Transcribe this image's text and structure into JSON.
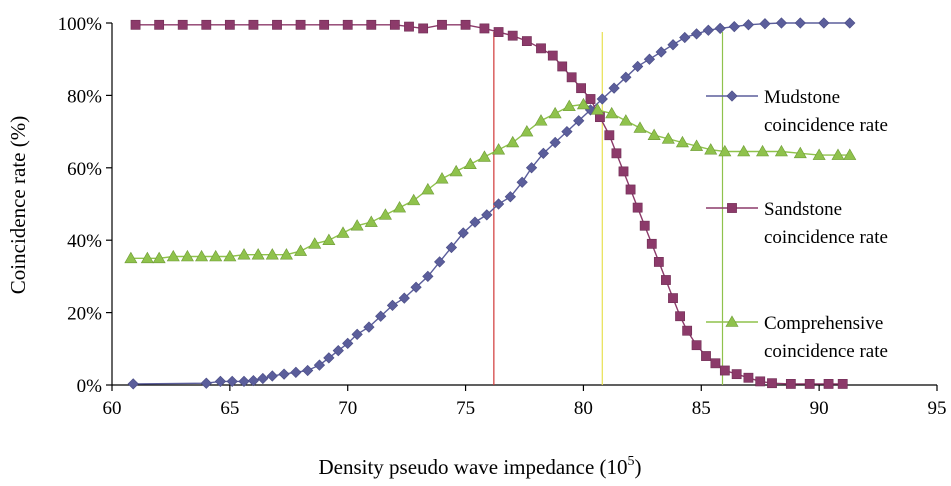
{
  "chart_data": {
    "type": "line",
    "xlabel": "Density pseudo wave impedance (10",
    "xlabel_sup": "5",
    "xlabel_end": ")",
    "ylabel": "Coincidence rate (%)",
    "xlim": [
      60,
      95
    ],
    "ylim": [
      0,
      100
    ],
    "x_ticks": [
      "60",
      "65",
      "70",
      "75",
      "80",
      "85",
      "90",
      "95"
    ],
    "y_ticks": [
      "0%",
      "20%",
      "40%",
      "60%",
      "80%",
      "100%"
    ],
    "grid": false,
    "legend_placement": "right",
    "series": [
      {
        "name": "Mudstone coincidence rate",
        "legend_lines": [
          "Mudstone",
          "coincidence rate"
        ],
        "color": "#5b5e9b",
        "marker": "diamond",
        "points": [
          [
            60.9,
            0.3
          ],
          [
            64.0,
            0.5
          ],
          [
            64.6,
            1
          ],
          [
            65.1,
            1
          ],
          [
            65.6,
            1
          ],
          [
            66.0,
            1.2
          ],
          [
            66.4,
            1.8
          ],
          [
            66.8,
            2.5
          ],
          [
            67.3,
            3
          ],
          [
            67.8,
            3.5
          ],
          [
            68.3,
            4
          ],
          [
            68.8,
            5.5
          ],
          [
            69.2,
            7.5
          ],
          [
            69.6,
            9.5
          ],
          [
            70.0,
            11.5
          ],
          [
            70.4,
            14
          ],
          [
            70.9,
            16
          ],
          [
            71.4,
            19
          ],
          [
            71.9,
            22
          ],
          [
            72.4,
            24
          ],
          [
            72.9,
            27
          ],
          [
            73.4,
            30
          ],
          [
            73.9,
            34
          ],
          [
            74.4,
            38
          ],
          [
            74.9,
            42
          ],
          [
            75.4,
            45
          ],
          [
            75.9,
            47
          ],
          [
            76.4,
            50
          ],
          [
            76.9,
            52
          ],
          [
            77.4,
            56
          ],
          [
            77.8,
            60
          ],
          [
            78.3,
            64
          ],
          [
            78.8,
            67
          ],
          [
            79.3,
            70
          ],
          [
            79.8,
            73
          ],
          [
            80.3,
            76
          ],
          [
            80.8,
            79
          ],
          [
            81.3,
            82
          ],
          [
            81.8,
            85
          ],
          [
            82.3,
            88
          ],
          [
            82.8,
            90
          ],
          [
            83.3,
            92
          ],
          [
            83.8,
            94
          ],
          [
            84.3,
            96
          ],
          [
            84.8,
            97
          ],
          [
            85.3,
            98
          ],
          [
            85.8,
            98.5
          ],
          [
            86.4,
            99
          ],
          [
            87.0,
            99.5
          ],
          [
            87.7,
            99.8
          ],
          [
            88.4,
            100
          ],
          [
            89.2,
            100
          ],
          [
            90.2,
            100
          ],
          [
            91.3,
            100
          ]
        ]
      },
      {
        "name": "Sandstone coincidence rate",
        "legend_lines": [
          "Sandstone",
          "coincidence rate"
        ],
        "color": "#8c3a6a",
        "marker": "square",
        "points": [
          [
            61.0,
            99.5
          ],
          [
            62.0,
            99.5
          ],
          [
            63.0,
            99.5
          ],
          [
            64.0,
            99.5
          ],
          [
            65.0,
            99.5
          ],
          [
            66.0,
            99.5
          ],
          [
            67.0,
            99.5
          ],
          [
            68.0,
            99.5
          ],
          [
            69.0,
            99.5
          ],
          [
            70.0,
            99.5
          ],
          [
            71.0,
            99.5
          ],
          [
            72.0,
            99.5
          ],
          [
            72.6,
            99
          ],
          [
            73.2,
            98.5
          ],
          [
            74.0,
            99.5
          ],
          [
            75.0,
            99.5
          ],
          [
            75.8,
            98.5
          ],
          [
            76.4,
            97.5
          ],
          [
            77.0,
            96.5
          ],
          [
            77.6,
            95
          ],
          [
            78.2,
            93
          ],
          [
            78.7,
            91
          ],
          [
            79.1,
            88
          ],
          [
            79.5,
            85
          ],
          [
            79.9,
            82
          ],
          [
            80.3,
            79
          ],
          [
            80.7,
            74
          ],
          [
            81.1,
            69
          ],
          [
            81.4,
            64
          ],
          [
            81.7,
            59
          ],
          [
            82.0,
            54
          ],
          [
            82.3,
            49
          ],
          [
            82.6,
            44
          ],
          [
            82.9,
            39
          ],
          [
            83.2,
            34
          ],
          [
            83.5,
            29
          ],
          [
            83.8,
            24
          ],
          [
            84.1,
            19
          ],
          [
            84.4,
            15
          ],
          [
            84.8,
            11
          ],
          [
            85.2,
            8
          ],
          [
            85.6,
            6
          ],
          [
            86.0,
            4
          ],
          [
            86.5,
            3
          ],
          [
            87.0,
            2
          ],
          [
            87.5,
            1
          ],
          [
            88.0,
            0.5
          ],
          [
            88.8,
            0.3
          ],
          [
            89.6,
            0.3
          ],
          [
            90.4,
            0.3
          ],
          [
            91.0,
            0.3
          ]
        ]
      },
      {
        "name": "Comprehensive coincidence rate",
        "legend_lines": [
          "Comprehensive",
          "coincidence rate"
        ],
        "color": "#8fc24c",
        "marker": "triangle",
        "points": [
          [
            60.8,
            35
          ],
          [
            61.5,
            35
          ],
          [
            62.0,
            35
          ],
          [
            62.6,
            35.5
          ],
          [
            63.2,
            35.5
          ],
          [
            63.8,
            35.5
          ],
          [
            64.4,
            35.5
          ],
          [
            65.0,
            35.5
          ],
          [
            65.6,
            36
          ],
          [
            66.2,
            36
          ],
          [
            66.8,
            36
          ],
          [
            67.4,
            36
          ],
          [
            68.0,
            37
          ],
          [
            68.6,
            39
          ],
          [
            69.2,
            40
          ],
          [
            69.8,
            42
          ],
          [
            70.4,
            44
          ],
          [
            71.0,
            45
          ],
          [
            71.6,
            47
          ],
          [
            72.2,
            49
          ],
          [
            72.8,
            51
          ],
          [
            73.4,
            54
          ],
          [
            74.0,
            57
          ],
          [
            74.6,
            59
          ],
          [
            75.2,
            61
          ],
          [
            75.8,
            63
          ],
          [
            76.4,
            65
          ],
          [
            77.0,
            67
          ],
          [
            77.6,
            70
          ],
          [
            78.2,
            73
          ],
          [
            78.8,
            75
          ],
          [
            79.4,
            77
          ],
          [
            80.0,
            77.5
          ],
          [
            80.6,
            76
          ],
          [
            81.2,
            75
          ],
          [
            81.8,
            73
          ],
          [
            82.4,
            71
          ],
          [
            83.0,
            69
          ],
          [
            83.6,
            68
          ],
          [
            84.2,
            67
          ],
          [
            84.8,
            66
          ],
          [
            85.4,
            65
          ],
          [
            86.0,
            64.5
          ],
          [
            86.8,
            64.5
          ],
          [
            87.6,
            64.5
          ],
          [
            88.4,
            64.5
          ],
          [
            89.2,
            64
          ],
          [
            90.0,
            63.5
          ],
          [
            90.8,
            63.5
          ],
          [
            91.3,
            63.5
          ]
        ]
      }
    ],
    "threshold_lines": [
      {
        "x": 76.2,
        "color": "#d03838"
      },
      {
        "x": 80.8,
        "color": "#e8e050"
      },
      {
        "x": 85.9,
        "color": "#8fc24c"
      }
    ]
  }
}
